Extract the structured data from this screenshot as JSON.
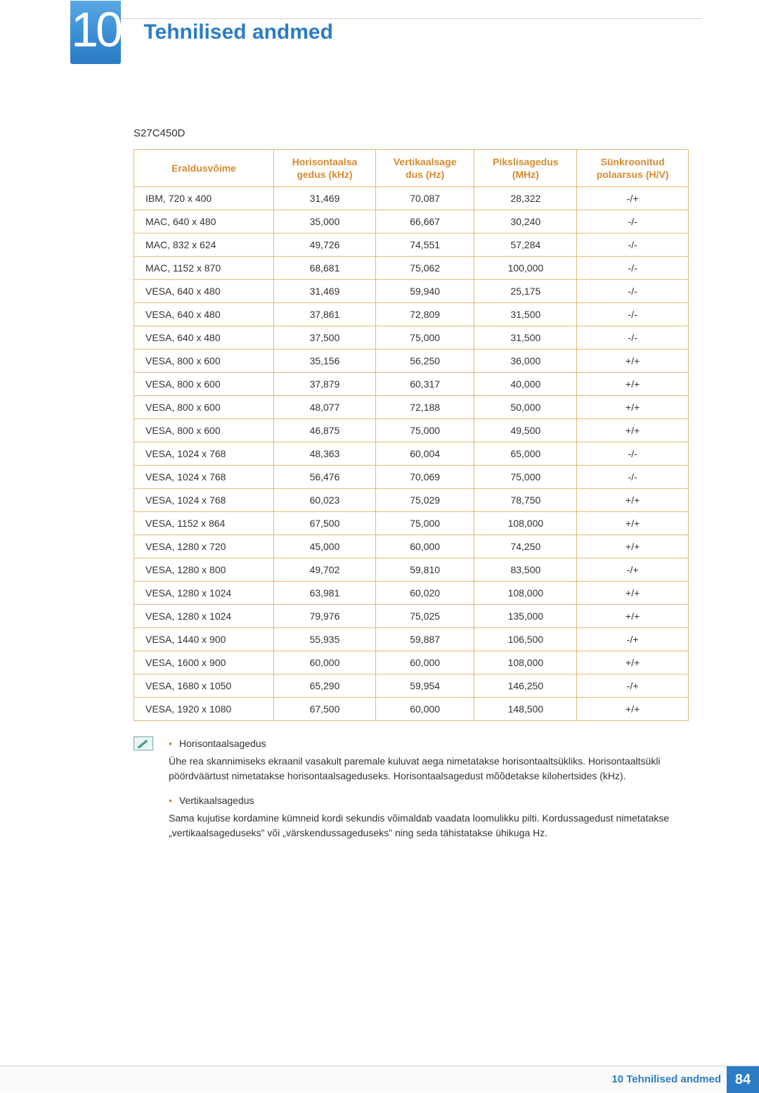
{
  "chapter": {
    "number": "10",
    "title": "Tehnilised andmed"
  },
  "model": "S27C450D",
  "table": {
    "headers": {
      "c0": "Eraldusvõime",
      "c1a": "Horisontaalsa",
      "c1b": "gedus (kHz)",
      "c2a": "Vertikaalsage",
      "c2b": "dus (Hz)",
      "c3a": "Pikslisagedus",
      "c3b": "(MHz)",
      "c4a": "Sünkroonitud",
      "c4b": "polaarsus (H/V)"
    },
    "rows": [
      {
        "r": "IBM, 720 x 400",
        "h": "31,469",
        "v": "70,087",
        "p": "28,322",
        "s": "-/+"
      },
      {
        "r": "MAC, 640 x 480",
        "h": "35,000",
        "v": "66,667",
        "p": "30,240",
        "s": "-/-"
      },
      {
        "r": "MAC, 832 x 624",
        "h": "49,726",
        "v": "74,551",
        "p": "57,284",
        "s": "-/-"
      },
      {
        "r": "MAC, 1152 x 870",
        "h": "68,681",
        "v": "75,062",
        "p": "100,000",
        "s": "-/-"
      },
      {
        "r": "VESA, 640 x 480",
        "h": "31,469",
        "v": "59,940",
        "p": "25,175",
        "s": "-/-"
      },
      {
        "r": "VESA, 640 x 480",
        "h": "37,861",
        "v": "72,809",
        "p": "31,500",
        "s": "-/-"
      },
      {
        "r": "VESA, 640 x 480",
        "h": "37,500",
        "v": "75,000",
        "p": "31,500",
        "s": "-/-"
      },
      {
        "r": "VESA, 800 x 600",
        "h": "35,156",
        "v": "56,250",
        "p": "36,000",
        "s": "+/+"
      },
      {
        "r": "VESA, 800 x 600",
        "h": "37,879",
        "v": "60,317",
        "p": "40,000",
        "s": "+/+"
      },
      {
        "r": "VESA, 800 x 600",
        "h": "48,077",
        "v": "72,188",
        "p": "50,000",
        "s": "+/+"
      },
      {
        "r": "VESA, 800 x 600",
        "h": "46,875",
        "v": "75,000",
        "p": "49,500",
        "s": "+/+"
      },
      {
        "r": "VESA, 1024 x 768",
        "h": "48,363",
        "v": "60,004",
        "p": "65,000",
        "s": "-/-"
      },
      {
        "r": "VESA, 1024 x 768",
        "h": "56,476",
        "v": "70,069",
        "p": "75,000",
        "s": "-/-"
      },
      {
        "r": "VESA, 1024 x 768",
        "h": "60,023",
        "v": "75,029",
        "p": "78,750",
        "s": "+/+"
      },
      {
        "r": "VESA, 1152 x 864",
        "h": "67,500",
        "v": "75,000",
        "p": "108,000",
        "s": "+/+"
      },
      {
        "r": "VESA, 1280 x 720",
        "h": "45,000",
        "v": "60,000",
        "p": "74,250",
        "s": "+/+"
      },
      {
        "r": "VESA, 1280 x 800",
        "h": "49,702",
        "v": "59,810",
        "p": "83,500",
        "s": "-/+"
      },
      {
        "r": "VESA, 1280 x 1024",
        "h": "63,981",
        "v": "60,020",
        "p": "108,000",
        "s": "+/+"
      },
      {
        "r": "VESA, 1280 x 1024",
        "h": "79,976",
        "v": "75,025",
        "p": "135,000",
        "s": "+/+"
      },
      {
        "r": "VESA, 1440 x 900",
        "h": "55,935",
        "v": "59,887",
        "p": "106,500",
        "s": "-/+"
      },
      {
        "r": "VESA, 1600 x 900",
        "h": "60,000",
        "v": "60,000",
        "p": "108,000",
        "s": "+/+"
      },
      {
        "r": "VESA, 1680 x 1050",
        "h": "65,290",
        "v": "59,954",
        "p": "146,250",
        "s": "-/+"
      },
      {
        "r": "VESA, 1920 x 1080",
        "h": "67,500",
        "v": "60,000",
        "p": "148,500",
        "s": "+/+"
      }
    ]
  },
  "notes": [
    {
      "term": "Horisontaalsagedus",
      "desc": "Ühe rea skannimiseks ekraanil vasakult paremale kuluvat aega nimetatakse horisontaaltsükliks. Horisontaaltsükli pöördväärtust nimetatakse horisontaalsageduseks. Horisontaalsagedust mõõdetakse kilohertsides (kHz)."
    },
    {
      "term": "Vertikaalsagedus",
      "desc": "Sama kujutise kordamine kümneid kordi sekundis võimaldab vaadata loomulikku pilti. Kordussagedust nimetatakse „vertikaalsageduseks\" või „värskendussageduseks\" ning seda tähistatakse ühikuga Hz."
    }
  ],
  "footer": {
    "label": "10 Tehnilised andmed",
    "page": "84"
  }
}
